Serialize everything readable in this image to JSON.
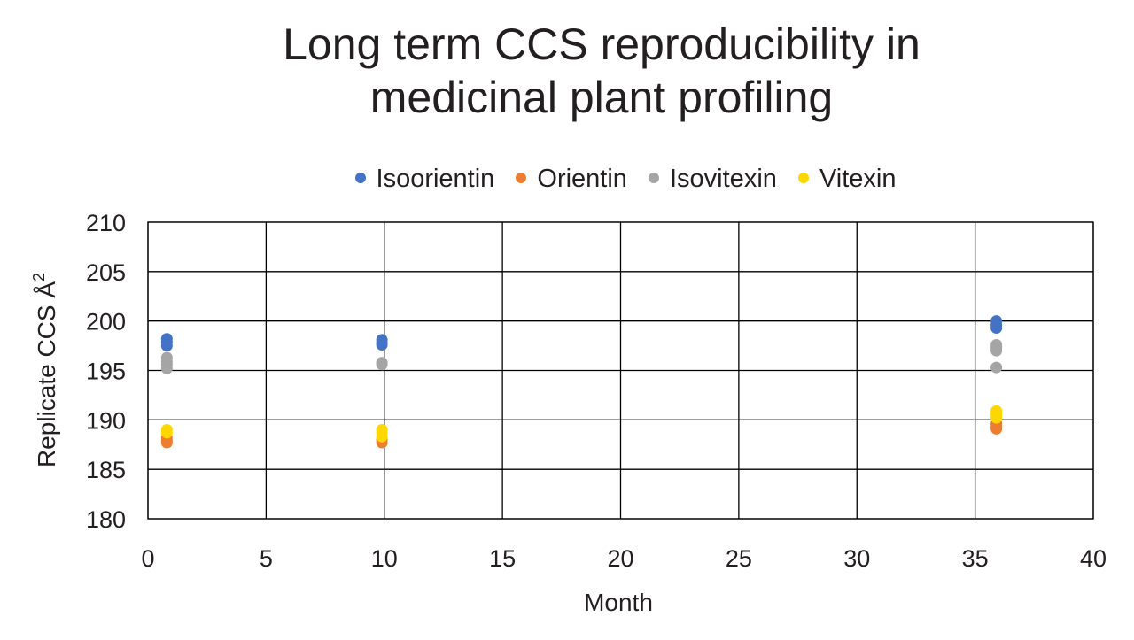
{
  "chart_data": {
    "type": "scatter",
    "title_lines": [
      "Long term CCS reproducibility in",
      "medicinal plant profiling"
    ],
    "xlabel": "Month",
    "ylabel": "Replicate CCS Å",
    "ylabel_superscript": "2",
    "xlim": [
      0,
      40
    ],
    "ylim": [
      180,
      210
    ],
    "x_ticks": [
      0,
      5,
      10,
      15,
      20,
      25,
      30,
      35,
      40
    ],
    "y_ticks": [
      180,
      185,
      190,
      195,
      200,
      205,
      210
    ],
    "grid": true,
    "legend_position": "top-center",
    "series": [
      {
        "name": "Isoorientin",
        "color": "#4472c4",
        "x": [
          0.8,
          0.8,
          0.8,
          9.9,
          9.9,
          9.9,
          35.9,
          35.9,
          35.9
        ],
        "y": [
          198.2,
          197.9,
          197.5,
          198.1,
          197.8,
          197.6,
          200.0,
          199.6,
          199.3
        ]
      },
      {
        "name": "Orientin",
        "color": "#ed7d31",
        "x": [
          0.8,
          0.8,
          0.8,
          9.9,
          9.9,
          35.9,
          35.9,
          35.9
        ],
        "y": [
          188.2,
          187.9,
          187.7,
          188.0,
          187.7,
          189.6,
          189.3,
          189.1
        ]
      },
      {
        "name": "Isovitexin",
        "color": "#a5a5a5",
        "x": [
          0.8,
          0.8,
          0.8,
          0.8,
          9.9,
          9.9,
          35.9,
          35.9,
          35.9,
          35.9
        ],
        "y": [
          196.3,
          195.9,
          195.6,
          195.2,
          195.8,
          195.6,
          197.6,
          197.3,
          197.0,
          195.3
        ]
      },
      {
        "name": "Vitexin",
        "color": "#ffd700",
        "x": [
          0.8,
          0.8,
          9.9,
          9.9,
          9.9,
          35.9,
          35.9,
          35.9
        ],
        "y": [
          189.0,
          188.7,
          189.0,
          188.7,
          188.3,
          190.9,
          190.6,
          190.2
        ]
      }
    ]
  }
}
